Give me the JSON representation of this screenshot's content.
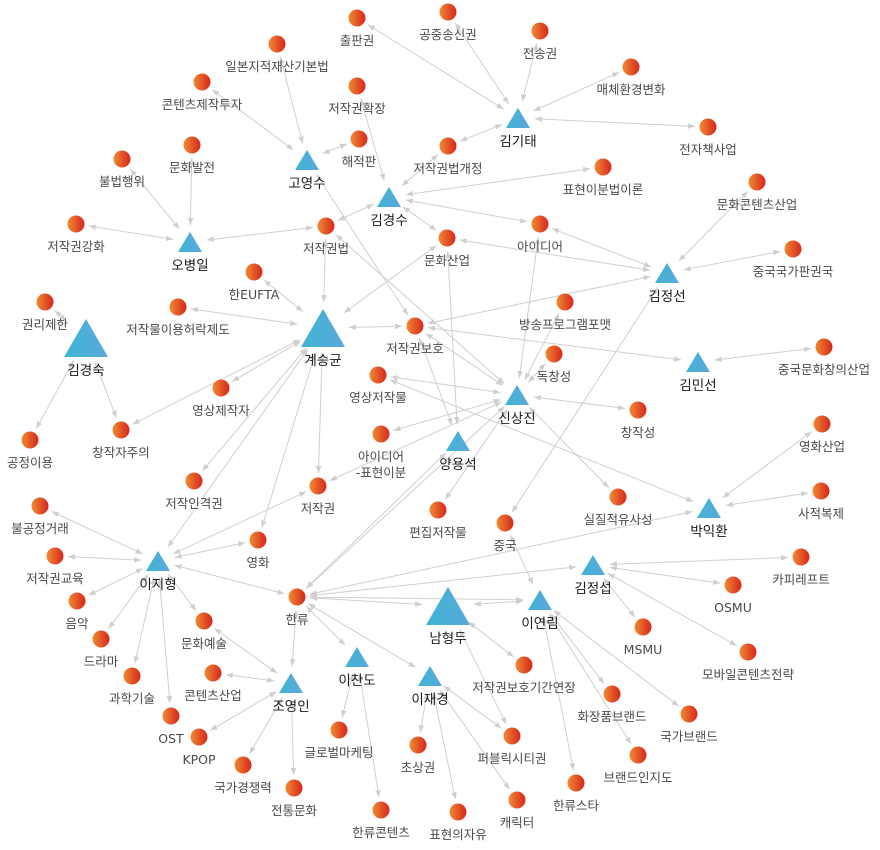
{
  "colors": {
    "person": "#4aaed8",
    "topic_start": "#f08a30",
    "topic_end": "#d6261e",
    "edge": "#cfcfcf"
  },
  "nodes": [
    {
      "id": "kgt",
      "label": "김기태",
      "kind": "person"
    },
    {
      "id": "gys",
      "label": "고영수",
      "kind": "person"
    },
    {
      "id": "kks",
      "label": "김경수",
      "kind": "person"
    },
    {
      "id": "obi",
      "label": "오병일",
      "kind": "person"
    },
    {
      "id": "kjs",
      "label": "김정선",
      "kind": "person"
    },
    {
      "id": "ksg",
      "label": "계승균",
      "kind": "person",
      "major": true
    },
    {
      "id": "kgsk",
      "label": "김경숙",
      "kind": "person",
      "major": true
    },
    {
      "id": "kms",
      "label": "김민선",
      "kind": "person"
    },
    {
      "id": "ssj",
      "label": "신상진",
      "kind": "person"
    },
    {
      "id": "yys",
      "label": "양용석",
      "kind": "person"
    },
    {
      "id": "pih",
      "label": "박익환",
      "kind": "person"
    },
    {
      "id": "ljh",
      "label": "이지형",
      "kind": "person"
    },
    {
      "id": "kjsp",
      "label": "김정섭",
      "kind": "person"
    },
    {
      "id": "nhd",
      "label": "남형두",
      "kind": "person",
      "major": true
    },
    {
      "id": "lyr",
      "label": "이연림",
      "kind": "person"
    },
    {
      "id": "lcd",
      "label": "이찬도",
      "kind": "person"
    },
    {
      "id": "ljk",
      "label": "이재경",
      "kind": "person"
    },
    {
      "id": "jyi",
      "label": "조영인",
      "kind": "person"
    },
    {
      "id": "t1",
      "label": "출판권",
      "kind": "topic"
    },
    {
      "id": "t2",
      "label": "공중송신권",
      "kind": "topic"
    },
    {
      "id": "t3",
      "label": "전송권",
      "kind": "topic"
    },
    {
      "id": "t4",
      "label": "일본지적재산기본법",
      "kind": "topic"
    },
    {
      "id": "t5",
      "label": "매체환경변화",
      "kind": "topic"
    },
    {
      "id": "t6",
      "label": "콘텐츠제작투자",
      "kind": "topic"
    },
    {
      "id": "t7",
      "label": "저작권확장",
      "kind": "topic"
    },
    {
      "id": "t8",
      "label": "해적판",
      "kind": "topic"
    },
    {
      "id": "t9",
      "label": "전자책사업",
      "kind": "topic"
    },
    {
      "id": "t10",
      "label": "저작권법개정",
      "kind": "topic"
    },
    {
      "id": "t11",
      "label": "문화발전",
      "kind": "topic"
    },
    {
      "id": "t12",
      "label": "불법행위",
      "kind": "topic"
    },
    {
      "id": "t13",
      "label": "표현이분법이론",
      "kind": "topic"
    },
    {
      "id": "t14",
      "label": "문화콘텐츠산업",
      "kind": "topic"
    },
    {
      "id": "t15",
      "label": "저작권강화",
      "kind": "topic"
    },
    {
      "id": "t16",
      "label": "저작권법",
      "kind": "topic"
    },
    {
      "id": "t17",
      "label": "아이디어",
      "kind": "topic"
    },
    {
      "id": "t18",
      "label": "문화산업",
      "kind": "topic"
    },
    {
      "id": "t19",
      "label": "중국국가판권국",
      "kind": "topic"
    },
    {
      "id": "t20",
      "label": "한EUFTA",
      "kind": "topic"
    },
    {
      "id": "t21",
      "label": "권리제한",
      "kind": "topic"
    },
    {
      "id": "t22",
      "label": "저작물이용허락제도",
      "kind": "topic"
    },
    {
      "id": "t23",
      "label": "방송프로그램포맷",
      "kind": "topic"
    },
    {
      "id": "t24",
      "label": "저작권보호",
      "kind": "topic"
    },
    {
      "id": "t25",
      "label": "중국문화창의산업",
      "kind": "topic"
    },
    {
      "id": "t26",
      "label": "독창성",
      "kind": "topic"
    },
    {
      "id": "t27",
      "label": "영상저작물",
      "kind": "topic"
    },
    {
      "id": "t28",
      "label": "영상제작자",
      "kind": "topic"
    },
    {
      "id": "t29",
      "label": "창작성",
      "kind": "topic"
    },
    {
      "id": "t30",
      "label": "영화산업",
      "kind": "topic"
    },
    {
      "id": "t31",
      "label": "아이디어\n-표현이분",
      "kind": "topic"
    },
    {
      "id": "t32",
      "label": "공정이용",
      "kind": "topic"
    },
    {
      "id": "t33",
      "label": "창작자주의",
      "kind": "topic"
    },
    {
      "id": "t34",
      "label": "저작인격권",
      "kind": "topic"
    },
    {
      "id": "t35",
      "label": "저작권",
      "kind": "topic"
    },
    {
      "id": "t36",
      "label": "사적복제",
      "kind": "topic"
    },
    {
      "id": "t37",
      "label": "실질적유사성",
      "kind": "topic"
    },
    {
      "id": "t38",
      "label": "편집저작물",
      "kind": "topic"
    },
    {
      "id": "t39",
      "label": "불공정거래",
      "kind": "topic"
    },
    {
      "id": "t40",
      "label": "중국",
      "kind": "topic"
    },
    {
      "id": "t41",
      "label": "영화",
      "kind": "topic"
    },
    {
      "id": "t42",
      "label": "저작권교육",
      "kind": "topic"
    },
    {
      "id": "t43",
      "label": "카피레프트",
      "kind": "topic"
    },
    {
      "id": "t44",
      "label": "OSMU",
      "kind": "topic"
    },
    {
      "id": "t45",
      "label": "한류",
      "kind": "topic"
    },
    {
      "id": "t46",
      "label": "음악",
      "kind": "topic"
    },
    {
      "id": "t47",
      "label": "문화예술",
      "kind": "topic"
    },
    {
      "id": "t48",
      "label": "MSMU",
      "kind": "topic"
    },
    {
      "id": "t49",
      "label": "드라마",
      "kind": "topic"
    },
    {
      "id": "t50",
      "label": "모바일콘텐츠전략",
      "kind": "topic"
    },
    {
      "id": "t51",
      "label": "저작권보호기간연장",
      "kind": "topic"
    },
    {
      "id": "t52",
      "label": "콘텐츠산업",
      "kind": "topic"
    },
    {
      "id": "t53",
      "label": "과학기술",
      "kind": "topic"
    },
    {
      "id": "t54",
      "label": "화장품브랜드",
      "kind": "topic"
    },
    {
      "id": "t55",
      "label": "국가브랜드",
      "kind": "topic"
    },
    {
      "id": "t56",
      "label": "OST",
      "kind": "topic"
    },
    {
      "id": "t57",
      "label": "KPOP",
      "kind": "topic"
    },
    {
      "id": "t58",
      "label": "글로벌마케팅",
      "kind": "topic"
    },
    {
      "id": "t59",
      "label": "퍼블릭시티권",
      "kind": "topic"
    },
    {
      "id": "t60",
      "label": "국가경쟁력",
      "kind": "topic"
    },
    {
      "id": "t61",
      "label": "초상권",
      "kind": "topic"
    },
    {
      "id": "t62",
      "label": "브랜드인지도",
      "kind": "topic"
    },
    {
      "id": "t63",
      "label": "전통문화",
      "kind": "topic"
    },
    {
      "id": "t64",
      "label": "한류스타",
      "kind": "topic"
    },
    {
      "id": "t65",
      "label": "캐릭터",
      "kind": "topic"
    },
    {
      "id": "t66",
      "label": "한류콘텐츠",
      "kind": "topic"
    },
    {
      "id": "t67",
      "label": "표현의자유",
      "kind": "topic"
    }
  ],
  "edges": [
    [
      "kgt",
      "t1"
    ],
    [
      "kgt",
      "t2"
    ],
    [
      "kgt",
      "t3"
    ],
    [
      "kgt",
      "t5"
    ],
    [
      "kgt",
      "t9"
    ],
    [
      "kgt",
      "t10"
    ],
    [
      "gys",
      "t4"
    ],
    [
      "gys",
      "t6"
    ],
    [
      "gys",
      "t8"
    ],
    [
      "gys",
      "t24"
    ],
    [
      "kks",
      "t7"
    ],
    [
      "kks",
      "t10"
    ],
    [
      "kks",
      "t13"
    ],
    [
      "kks",
      "t17"
    ],
    [
      "kks",
      "t16"
    ],
    [
      "kks",
      "t18"
    ],
    [
      "obi",
      "t11"
    ],
    [
      "obi",
      "t12"
    ],
    [
      "obi",
      "t15"
    ],
    [
      "obi",
      "t16"
    ],
    [
      "ksg",
      "t16"
    ],
    [
      "ksg",
      "t20"
    ],
    [
      "ksg",
      "t22"
    ],
    [
      "ksg",
      "t18"
    ],
    [
      "ksg",
      "t28"
    ],
    [
      "ksg",
      "t33"
    ],
    [
      "ksg",
      "t24"
    ],
    [
      "ksg",
      "t34"
    ],
    [
      "ksg",
      "t35"
    ],
    [
      "ksg",
      "t41"
    ],
    [
      "ksg",
      "ljh"
    ],
    [
      "kgsk",
      "t21"
    ],
    [
      "kgsk",
      "t32"
    ],
    [
      "kgsk",
      "t33"
    ],
    [
      "kjs",
      "t14"
    ],
    [
      "kjs",
      "t19"
    ],
    [
      "kjs",
      "t17"
    ],
    [
      "kjs",
      "t18"
    ],
    [
      "kjs",
      "t24"
    ],
    [
      "kjs",
      "t40"
    ],
    [
      "kms",
      "t25"
    ],
    [
      "kms",
      "t24"
    ],
    [
      "ssj",
      "t17"
    ],
    [
      "ssj",
      "t23"
    ],
    [
      "ssj",
      "t26"
    ],
    [
      "ssj",
      "t29"
    ],
    [
      "ssj",
      "t27"
    ],
    [
      "ssj",
      "t31"
    ],
    [
      "ssj",
      "t38"
    ],
    [
      "ssj",
      "t24"
    ],
    [
      "ssj",
      "t16"
    ],
    [
      "ssj",
      "t37"
    ],
    [
      "ssj",
      "t45"
    ],
    [
      "ssj",
      "t35"
    ],
    [
      "yys",
      "t45"
    ],
    [
      "yys",
      "t18"
    ],
    [
      "yys",
      "t24"
    ],
    [
      "pih",
      "t30"
    ],
    [
      "pih",
      "t36"
    ],
    [
      "pih",
      "t45"
    ],
    [
      "pih",
      "t27"
    ],
    [
      "ljh",
      "t39"
    ],
    [
      "ljh",
      "t42"
    ],
    [
      "ljh",
      "t46"
    ],
    [
      "ljh",
      "t49"
    ],
    [
      "ljh",
      "t53"
    ],
    [
      "ljh",
      "t56"
    ],
    [
      "ljh",
      "t47"
    ],
    [
      "ljh",
      "t45"
    ],
    [
      "ljh",
      "t41"
    ],
    [
      "ljh",
      "t35"
    ],
    [
      "kjsp",
      "t43"
    ],
    [
      "kjsp",
      "t44"
    ],
    [
      "kjsp",
      "t48"
    ],
    [
      "kjsp",
      "t50"
    ],
    [
      "kjsp",
      "t45"
    ],
    [
      "nhd",
      "t45"
    ],
    [
      "nhd",
      "lyr"
    ],
    [
      "nhd",
      "t51"
    ],
    [
      "nhd",
      "t59"
    ],
    [
      "lyr",
      "t40"
    ],
    [
      "lyr",
      "t54"
    ],
    [
      "lyr",
      "t55"
    ],
    [
      "lyr",
      "t62"
    ],
    [
      "lyr",
      "t64"
    ],
    [
      "lyr",
      "t45"
    ],
    [
      "lcd",
      "t45"
    ],
    [
      "lcd",
      "t58"
    ],
    [
      "lcd",
      "t66"
    ],
    [
      "ljk",
      "t45"
    ],
    [
      "ljk",
      "t61"
    ],
    [
      "ljk",
      "t65"
    ],
    [
      "ljk",
      "t59"
    ],
    [
      "ljk",
      "t67"
    ],
    [
      "jyi",
      "t45"
    ],
    [
      "jyi",
      "t47"
    ],
    [
      "jyi",
      "t52"
    ],
    [
      "jyi",
      "t60"
    ],
    [
      "jyi",
      "t57"
    ],
    [
      "jyi",
      "t63"
    ]
  ]
}
